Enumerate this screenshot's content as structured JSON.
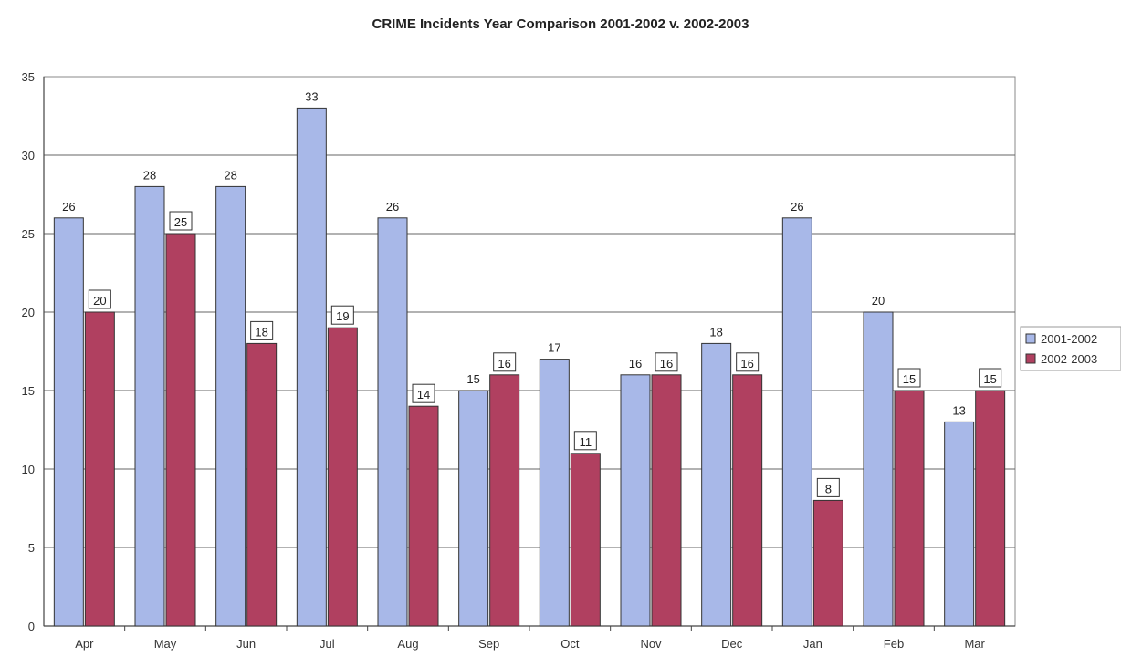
{
  "chart_data": {
    "type": "bar",
    "title": "CRIME Incidents Year Comparison 2001-2002 v. 2002-2003",
    "xlabel": "",
    "ylabel": "",
    "ylim": [
      0,
      35
    ],
    "yticks": [
      0,
      5,
      10,
      15,
      20,
      25,
      30,
      35
    ],
    "grid": true,
    "legend_position": "right",
    "categories": [
      "Apr",
      "May",
      "Jun",
      "Jul",
      "Aug",
      "Sep",
      "Oct",
      "Nov",
      "Dec",
      "Jan",
      "Feb",
      "Mar"
    ],
    "series": [
      {
        "name": "2001-2002",
        "color": "#a8b8e8",
        "values": [
          26,
          28,
          28,
          33,
          26,
          15,
          17,
          16,
          18,
          26,
          20,
          13
        ]
      },
      {
        "name": "2002-2003",
        "color": "#b04060",
        "values": [
          20,
          25,
          18,
          19,
          14,
          16,
          11,
          16,
          16,
          8,
          15,
          15
        ]
      }
    ]
  }
}
